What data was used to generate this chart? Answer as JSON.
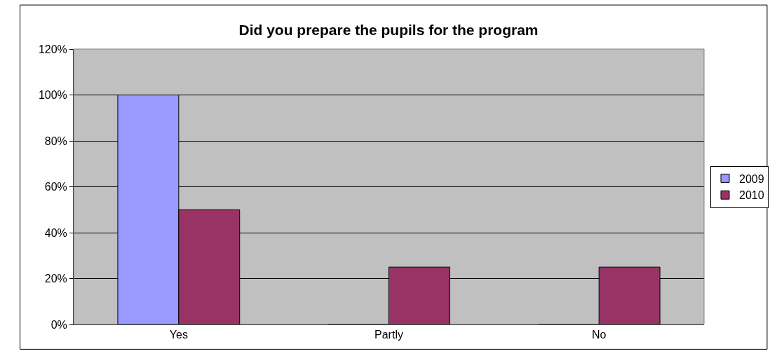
{
  "chart_data": {
    "type": "bar",
    "title": "Did you prepare the pupils for the program",
    "categories": [
      "Yes",
      "Partly",
      "No"
    ],
    "series": [
      {
        "name": "2009",
        "color": "#9999ff",
        "values": [
          100,
          0,
          0
        ]
      },
      {
        "name": "2010",
        "color": "#993366",
        "values": [
          50,
          25,
          25
        ]
      }
    ],
    "ylim": [
      0,
      120
    ],
    "yticks": [
      {
        "value": 0,
        "label": "0%"
      },
      {
        "value": 20,
        "label": "20%"
      },
      {
        "value": 40,
        "label": "40%"
      },
      {
        "value": 60,
        "label": "60%"
      },
      {
        "value": 80,
        "label": "80%"
      },
      {
        "value": 100,
        "label": "100%"
      },
      {
        "value": 120,
        "label": "120%"
      }
    ],
    "grid": "y",
    "legend": "right"
  }
}
